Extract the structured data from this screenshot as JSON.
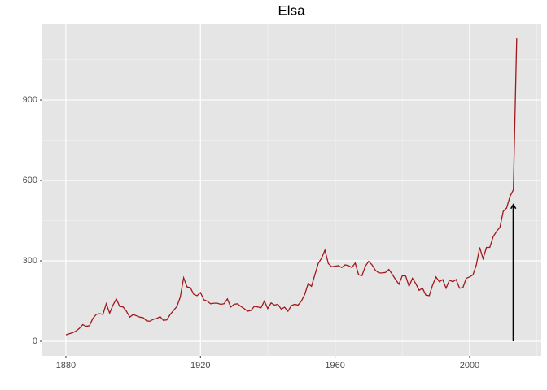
{
  "chart_data": {
    "type": "line",
    "title": "Elsa",
    "x": [
      1880,
      1881,
      1882,
      1883,
      1884,
      1885,
      1886,
      1887,
      1888,
      1889,
      1890,
      1891,
      1892,
      1893,
      1894,
      1895,
      1896,
      1897,
      1898,
      1899,
      1900,
      1901,
      1902,
      1903,
      1904,
      1905,
      1906,
      1907,
      1908,
      1909,
      1910,
      1911,
      1912,
      1913,
      1914,
      1915,
      1916,
      1917,
      1918,
      1919,
      1920,
      1921,
      1922,
      1923,
      1924,
      1925,
      1926,
      1927,
      1928,
      1929,
      1930,
      1931,
      1932,
      1933,
      1934,
      1935,
      1936,
      1937,
      1938,
      1939,
      1940,
      1941,
      1942,
      1943,
      1944,
      1945,
      1946,
      1947,
      1948,
      1949,
      1950,
      1951,
      1952,
      1953,
      1954,
      1955,
      1956,
      1957,
      1958,
      1959,
      1960,
      1961,
      1962,
      1963,
      1964,
      1965,
      1966,
      1967,
      1968,
      1969,
      1970,
      1971,
      1972,
      1973,
      1974,
      1975,
      1976,
      1977,
      1978,
      1979,
      1980,
      1981,
      1982,
      1983,
      1984,
      1985,
      1986,
      1987,
      1988,
      1989,
      1990,
      1991,
      1992,
      1993,
      1994,
      1995,
      1996,
      1997,
      1998,
      1999,
      2000,
      2001,
      2002,
      2003,
      2004,
      2005,
      2006,
      2007,
      2008,
      2009,
      2010,
      2011,
      2012,
      2013,
      2014
    ],
    "series": [
      {
        "color": "#a0181c",
        "values": [
          24,
          28,
          32,
          38,
          48,
          62,
          56,
          58,
          85,
          100,
          103,
          100,
          140,
          105,
          135,
          158,
          130,
          128,
          112,
          90,
          100,
          95,
          90,
          88,
          76,
          75,
          82,
          85,
          92,
          78,
          80,
          100,
          115,
          130,
          165,
          237,
          203,
          200,
          175,
          170,
          182,
          155,
          150,
          140,
          142,
          142,
          138,
          140,
          158,
          128,
          138,
          140,
          130,
          122,
          112,
          115,
          130,
          128,
          125,
          150,
          122,
          143,
          135,
          138,
          120,
          127,
          112,
          133,
          138,
          135,
          150,
          175,
          215,
          205,
          248,
          290,
          310,
          340,
          290,
          278,
          280,
          282,
          275,
          285,
          282,
          275,
          292,
          248,
          245,
          280,
          298,
          285,
          265,
          255,
          255,
          257,
          268,
          250,
          230,
          213,
          245,
          243,
          205,
          235,
          215,
          190,
          198,
          172,
          170,
          210,
          240,
          222,
          230,
          198,
          228,
          222,
          230,
          198,
          200,
          235,
          240,
          248,
          285,
          350,
          308,
          350,
          350,
          390,
          410,
          425,
          485,
          497,
          540,
          565,
          1130
        ]
      }
    ],
    "arrow": {
      "x": 2013,
      "y_from": 0,
      "y_to": 510,
      "color": "#000000"
    },
    "xlim": [
      1873,
      2021.3
    ],
    "ylim": [
      -54.5,
      1182
    ],
    "xticks": [
      1880,
      1920,
      1960,
      2000
    ],
    "yticks": [
      0,
      300,
      600,
      900
    ],
    "grid": true
  }
}
